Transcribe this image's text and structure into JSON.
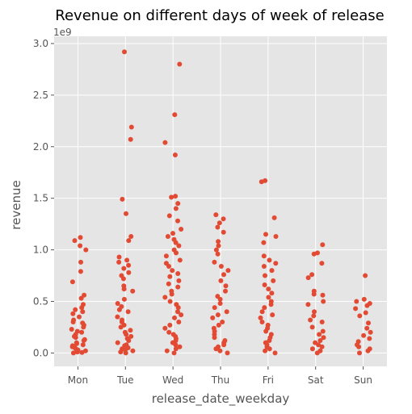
{
  "chart_data": {
    "type": "scatter",
    "subtype": "strip",
    "title": "Revenue on different days of week of release",
    "xlabel": "release_date_weekday",
    "ylabel": "revenue",
    "y_offset_label": "1e9",
    "ylim": [
      -0.13,
      3.07
    ],
    "yticks": [
      0.0,
      0.5,
      1.0,
      1.5,
      2.0,
      2.5,
      3.0
    ],
    "ytick_labels": [
      "0.0",
      "0.5",
      "1.0",
      "1.5",
      "2.0",
      "2.5",
      "3.0"
    ],
    "categories": [
      "Mon",
      "Tue",
      "Wed",
      "Thu",
      "Fri",
      "Sat",
      "Sun"
    ],
    "grid": true,
    "style": "ggplot",
    "point_color": "#E24A33",
    "background_color": "#E5E5E5",
    "series": [
      {
        "category": "Mon",
        "values": [
          1.12,
          1.09,
          1.04,
          1.0,
          0.88,
          0.79,
          0.69,
          0.56,
          0.53,
          0.47,
          0.44,
          0.42,
          0.4,
          0.38,
          0.35,
          0.32,
          0.3,
          0.29,
          0.27,
          0.25,
          0.23,
          0.21,
          0.2,
          0.18,
          0.16,
          0.15,
          0.13,
          0.12,
          0.1,
          0.09,
          0.08,
          0.07,
          0.06,
          0.05,
          0.04,
          0.03,
          0.02,
          0.01,
          0.005,
          0.0
        ]
      },
      {
        "category": "Tue",
        "values": [
          2.92,
          2.19,
          2.07,
          1.49,
          1.35,
          1.13,
          1.09,
          0.93,
          0.9,
          0.88,
          0.85,
          0.82,
          0.78,
          0.75,
          0.72,
          0.65,
          0.62,
          0.6,
          0.52,
          0.48,
          0.45,
          0.42,
          0.4,
          0.35,
          0.32,
          0.3,
          0.27,
          0.25,
          0.22,
          0.2,
          0.18,
          0.16,
          0.14,
          0.12,
          0.1,
          0.08,
          0.07,
          0.06,
          0.05,
          0.04,
          0.03,
          0.02,
          0.01,
          0.0
        ]
      },
      {
        "category": "Wed",
        "values": [
          2.8,
          2.31,
          2.04,
          1.92,
          1.52,
          1.51,
          1.45,
          1.4,
          1.33,
          1.28,
          1.2,
          1.16,
          1.13,
          1.1,
          1.07,
          1.04,
          1.0,
          0.97,
          0.94,
          0.9,
          0.87,
          0.84,
          0.8,
          0.77,
          0.74,
          0.7,
          0.67,
          0.64,
          0.6,
          0.57,
          0.54,
          0.5,
          0.47,
          0.44,
          0.4,
          0.37,
          0.34,
          0.3,
          0.27,
          0.24,
          0.2,
          0.18,
          0.16,
          0.14,
          0.12,
          0.1,
          0.08,
          0.06,
          0.04,
          0.02,
          0.0
        ]
      },
      {
        "category": "Thu",
        "values": [
          1.34,
          1.3,
          1.26,
          1.22,
          1.17,
          1.08,
          1.04,
          1.0,
          0.96,
          0.88,
          0.84,
          0.8,
          0.76,
          0.7,
          0.65,
          0.6,
          0.55,
          0.52,
          0.48,
          0.44,
          0.4,
          0.37,
          0.34,
          0.3,
          0.27,
          0.24,
          0.21,
          0.18,
          0.15,
          0.12,
          0.1,
          0.08,
          0.06,
          0.04,
          0.02,
          0.0
        ]
      },
      {
        "category": "Fri",
        "values": [
          1.67,
          1.66,
          1.31,
          1.15,
          1.13,
          1.07,
          0.94,
          0.9,
          0.87,
          0.84,
          0.8,
          0.75,
          0.7,
          0.66,
          0.62,
          0.58,
          0.54,
          0.5,
          0.47,
          0.44,
          0.4,
          0.37,
          0.34,
          0.3,
          0.27,
          0.24,
          0.21,
          0.18,
          0.15,
          0.12,
          0.1,
          0.08,
          0.06,
          0.04,
          0.02,
          0.0
        ]
      },
      {
        "category": "Sat",
        "values": [
          1.05,
          0.97,
          0.96,
          0.87,
          0.76,
          0.73,
          0.6,
          0.57,
          0.56,
          0.5,
          0.47,
          0.4,
          0.36,
          0.32,
          0.3,
          0.25,
          0.21,
          0.18,
          0.15,
          0.12,
          0.1,
          0.08,
          0.06,
          0.04,
          0.02,
          0.0
        ]
      },
      {
        "category": "Sun",
        "values": [
          0.75,
          0.52,
          0.5,
          0.48,
          0.46,
          0.43,
          0.39,
          0.36,
          0.29,
          0.24,
          0.2,
          0.17,
          0.14,
          0.11,
          0.08,
          0.06,
          0.04,
          0.02,
          0.0
        ]
      }
    ]
  }
}
